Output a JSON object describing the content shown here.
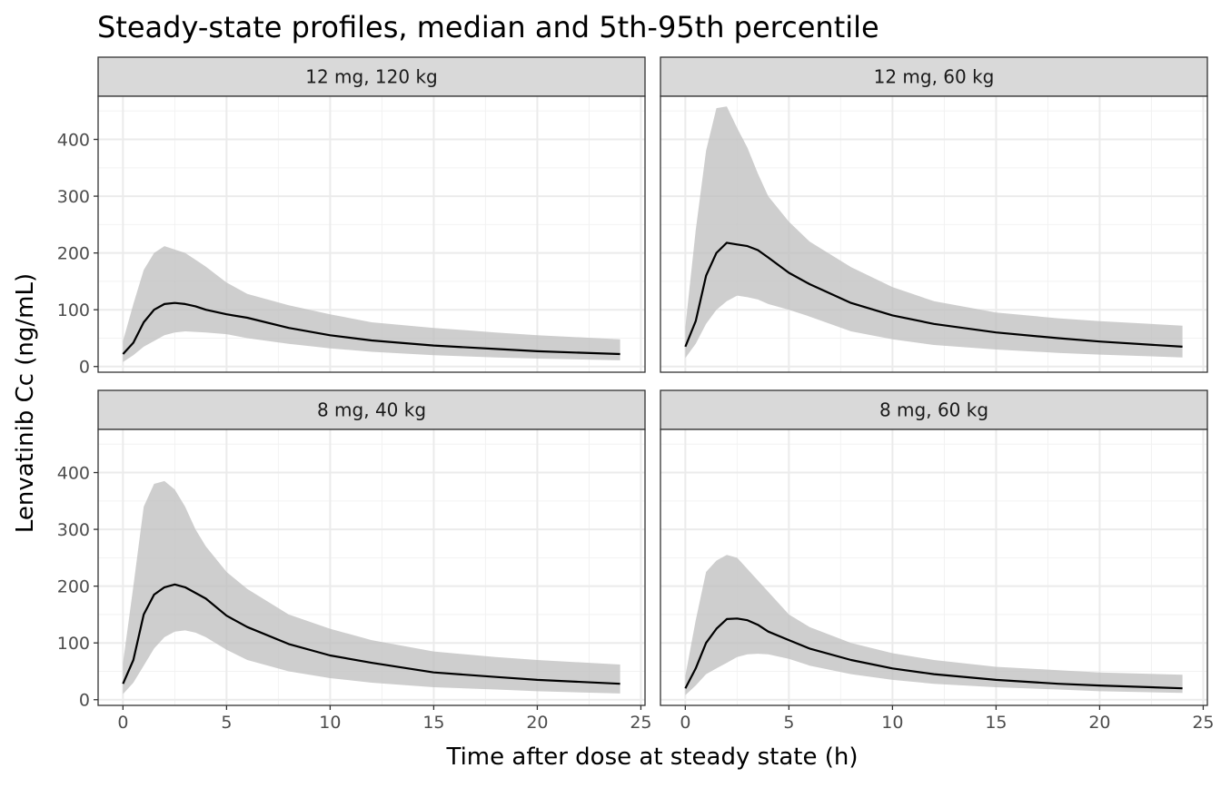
{
  "chart_data": {
    "type": "area",
    "title": "Steady-state profiles, median and 5th-95th percentile",
    "xlabel": "Time after dose at steady state (h)",
    "ylabel": "Lenvatinib Cc (ng/mL)",
    "xlim": [
      -1.2,
      25.2
    ],
    "ylim": [
      -10,
      476
    ],
    "x_ticks": [
      0,
      5,
      10,
      15,
      20,
      25
    ],
    "y_ticks": [
      0,
      100,
      200,
      300,
      400
    ],
    "grid": true,
    "band_color": "#bdbdbd",
    "line_color": "#000000",
    "panels": [
      {
        "label": "12 mg, 120 kg",
        "x": [
          0,
          0.5,
          1,
          1.5,
          2,
          2.5,
          3,
          3.5,
          4,
          5,
          6,
          8,
          10,
          12,
          15,
          18,
          20,
          24
        ],
        "median": [
          22,
          42,
          78,
          100,
          110,
          112,
          110,
          106,
          100,
          92,
          86,
          68,
          55,
          46,
          37,
          31,
          27,
          22
        ],
        "p5": [
          8,
          20,
          35,
          45,
          55,
          60,
          62,
          61,
          60,
          57,
          50,
          40,
          32,
          26,
          20,
          16,
          14,
          11
        ],
        "p95": [
          45,
          110,
          170,
          200,
          212,
          206,
          200,
          188,
          176,
          148,
          128,
          108,
          92,
          78,
          68,
          60,
          55,
          48
        ]
      },
      {
        "label": "12 mg, 60 kg",
        "x": [
          0,
          0.5,
          1,
          1.5,
          2,
          2.5,
          3,
          3.5,
          4,
          5,
          6,
          8,
          10,
          12,
          15,
          18,
          20,
          24
        ],
        "median": [
          35,
          80,
          160,
          200,
          218,
          215,
          212,
          205,
          192,
          165,
          145,
          112,
          90,
          75,
          60,
          50,
          44,
          35
        ],
        "p5": [
          15,
          40,
          75,
          100,
          115,
          125,
          122,
          118,
          110,
          100,
          88,
          62,
          48,
          38,
          30,
          24,
          21,
          16
        ],
        "p95": [
          70,
          240,
          380,
          455,
          458,
          420,
          385,
          340,
          300,
          255,
          220,
          175,
          140,
          115,
          95,
          85,
          80,
          72
        ]
      },
      {
        "label": "8 mg, 40 kg",
        "x": [
          0,
          0.5,
          1,
          1.5,
          2,
          2.5,
          3,
          3.5,
          4,
          5,
          6,
          8,
          10,
          12,
          15,
          18,
          20,
          24
        ],
        "median": [
          28,
          70,
          150,
          185,
          198,
          203,
          198,
          188,
          178,
          148,
          128,
          98,
          78,
          65,
          48,
          40,
          35,
          28
        ],
        "p5": [
          10,
          30,
          60,
          90,
          110,
          120,
          122,
          118,
          110,
          88,
          70,
          50,
          38,
          30,
          22,
          18,
          15,
          11
        ],
        "p95": [
          65,
          200,
          340,
          380,
          385,
          370,
          340,
          300,
          270,
          225,
          195,
          150,
          125,
          105,
          85,
          75,
          70,
          62
        ]
      },
      {
        "label": "8 mg, 60 kg",
        "x": [
          0,
          0.5,
          1,
          1.5,
          2,
          2.5,
          3,
          3.5,
          4,
          5,
          6,
          8,
          10,
          12,
          15,
          18,
          20,
          24
        ],
        "median": [
          20,
          55,
          100,
          125,
          142,
          143,
          140,
          132,
          120,
          105,
          90,
          70,
          55,
          45,
          35,
          28,
          25,
          20
        ],
        "p5": [
          8,
          25,
          45,
          55,
          65,
          75,
          80,
          81,
          80,
          72,
          60,
          45,
          35,
          28,
          22,
          18,
          15,
          12
        ],
        "p95": [
          42,
          140,
          225,
          245,
          255,
          250,
          230,
          210,
          190,
          150,
          128,
          100,
          82,
          70,
          58,
          52,
          48,
          44
        ]
      }
    ]
  }
}
